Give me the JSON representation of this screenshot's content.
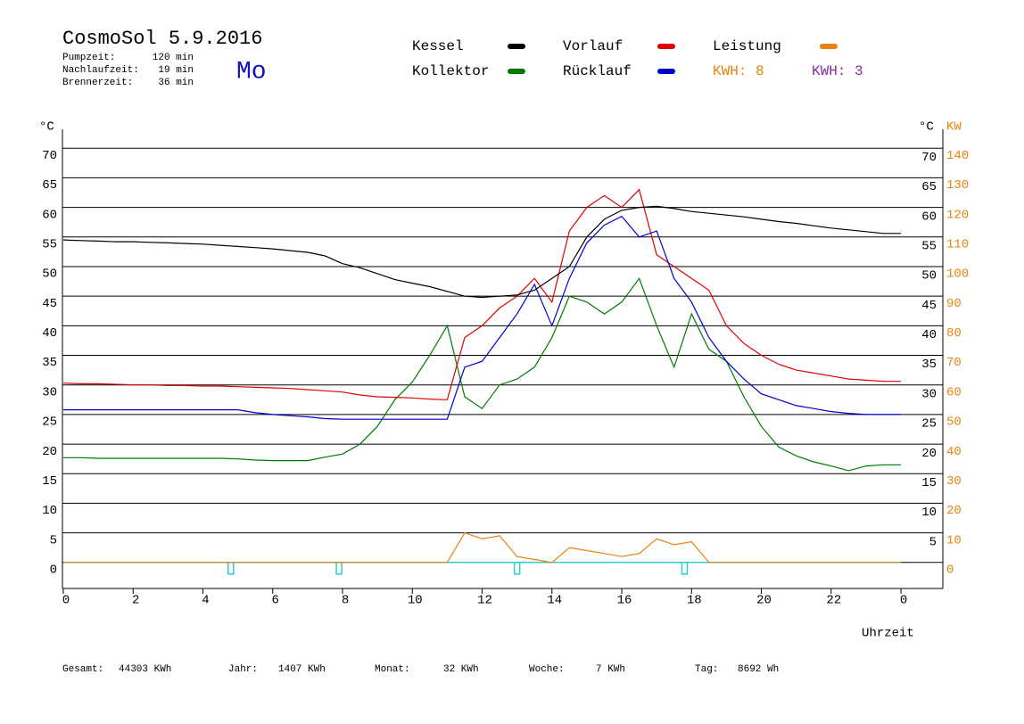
{
  "chart_data": {
    "type": "line",
    "title": "CosmoSol 5.9.2016",
    "weekday": "Mo",
    "info": [
      {
        "label": "Pumpzeit:",
        "value": "120 min"
      },
      {
        "label": "Nachlaufzeit:",
        "value": "19 min"
      },
      {
        "label": "Brennerzeit:",
        "value": "36 min"
      }
    ],
    "ylabel": "°C",
    "ylabel_right": "°C",
    "y2label": "KW",
    "xlabel": "Uhrzeit",
    "kwh": [
      {
        "label": "KWH: 8",
        "color": "#e8820c"
      },
      {
        "label": "KWH: 3",
        "color": "#8a2a9a"
      }
    ],
    "x": [
      0,
      0.5,
      1,
      1.5,
      2,
      2.5,
      3,
      3.5,
      4,
      4.5,
      5,
      5.5,
      6,
      6.5,
      7,
      7.5,
      8,
      8.5,
      9,
      9.5,
      10,
      10.5,
      11,
      11.5,
      12,
      12.5,
      13,
      13.5,
      14,
      14.5,
      15,
      15.5,
      16,
      16.5,
      17,
      17.5,
      18,
      18.5,
      19,
      19.5,
      20,
      20.5,
      21,
      21.5,
      22,
      22.5,
      23,
      23.5,
      24
    ],
    "series": [
      {
        "name": "Kessel",
        "color": "#000000",
        "values": [
          54.5,
          54.4,
          54.3,
          54.2,
          54.2,
          54.1,
          54,
          53.9,
          53.8,
          53.6,
          53.4,
          53.2,
          53,
          52.7,
          52.4,
          51.8,
          50.5,
          49.8,
          48.8,
          47.8,
          47.2,
          46.6,
          45.8,
          45,
          44.8,
          45,
          45.2,
          46,
          48,
          50,
          55,
          58,
          59.5,
          60,
          60.2,
          59.8,
          59.3,
          59,
          58.7,
          58.4,
          58,
          57.6,
          57.3,
          56.9,
          56.5,
          56.2,
          55.9,
          55.6,
          55.6
        ]
      },
      {
        "name": "Vorlauf",
        "color": "#e00000",
        "values": [
          30.3,
          30.2,
          30.2,
          30.1,
          30,
          30,
          29.9,
          29.9,
          29.8,
          29.8,
          29.7,
          29.6,
          29.5,
          29.4,
          29.2,
          29,
          28.8,
          28.3,
          28,
          27.9,
          27.8,
          27.6,
          27.5,
          38,
          40,
          43,
          45,
          48,
          44,
          56,
          60,
          62,
          60,
          63,
          52,
          50,
          48,
          46,
          40,
          37,
          35,
          33.5,
          32.5,
          32,
          31.5,
          31,
          30.8,
          30.6,
          30.6
        ]
      },
      {
        "name": "Leistung",
        "color": "#e8820c",
        "axis": "y2",
        "values": [
          0,
          0,
          0,
          0,
          0,
          0,
          0,
          0,
          0,
          0,
          0,
          0,
          0,
          0,
          0,
          0,
          0,
          0,
          0,
          0,
          0,
          0,
          0,
          10,
          8,
          9,
          2,
          1,
          0,
          5,
          4,
          3,
          2,
          3,
          8,
          6,
          7,
          0,
          0,
          0,
          0,
          0,
          0,
          0,
          0,
          0,
          0,
          0,
          0
        ]
      },
      {
        "name": "Kollektor",
        "color": "#007a00",
        "values": [
          17.7,
          17.7,
          17.6,
          17.6,
          17.6,
          17.6,
          17.6,
          17.6,
          17.6,
          17.6,
          17.5,
          17.3,
          17.2,
          17.2,
          17.2,
          17.8,
          18.3,
          20,
          23,
          27.5,
          30.5,
          35,
          40,
          28,
          26,
          30,
          31,
          33,
          38,
          45,
          44,
          42,
          44,
          48,
          40,
          33,
          42,
          36,
          34,
          28,
          23,
          19.5,
          18,
          17,
          16.3,
          15.5,
          16.3,
          16.5,
          16.5
        ]
      },
      {
        "name": "Rücklauf",
        "color": "#0000cc",
        "values": [
          25.8,
          25.8,
          25.8,
          25.8,
          25.8,
          25.8,
          25.8,
          25.8,
          25.8,
          25.8,
          25.8,
          25.3,
          25,
          24.8,
          24.6,
          24.3,
          24.2,
          24.2,
          24.2,
          24.2,
          24.2,
          24.2,
          24.2,
          33,
          34,
          38,
          42,
          47,
          40,
          48,
          54,
          57,
          58.5,
          55,
          56,
          48,
          44,
          38,
          34,
          31,
          28.5,
          27.5,
          26.5,
          26,
          25.5,
          25.2,
          25,
          25,
          25
        ]
      }
    ],
    "markers_x": [
      4.8,
      7.9,
      13.0,
      17.8
    ],
    "marker_color": "#33cccc",
    "xlim": [
      0,
      25.2
    ],
    "xticks": [
      0,
      2,
      4,
      6,
      8,
      10,
      12,
      14,
      16,
      18,
      20,
      22,
      {
        "value": 24,
        "label": "0"
      }
    ],
    "ylim": [
      -4.4,
      73.2
    ],
    "yticks": [
      0,
      5,
      10,
      15,
      20,
      25,
      30,
      35,
      40,
      45,
      50,
      55,
      60,
      65,
      70
    ],
    "yticks_right": [
      5,
      10,
      15,
      20,
      25,
      30,
      35,
      40,
      45,
      50,
      55,
      60,
      65,
      70
    ],
    "y2lim": [
      -8.8,
      146.4
    ],
    "y2ticks": [
      0,
      10,
      20,
      30,
      40,
      50,
      60,
      70,
      80,
      90,
      100,
      110,
      120,
      130,
      140
    ],
    "y2color": "#e8820c",
    "grid": true,
    "totals": [
      {
        "label": "Gesamt:",
        "value": "44303 KWh"
      },
      {
        "label": "Jahr:",
        "value": "1407 KWh"
      },
      {
        "label": "Monat:",
        "value": "32 KWh"
      },
      {
        "label": "Woche:",
        "value": "7 KWh"
      },
      {
        "label": "Tag:",
        "value": "8692 Wh"
      }
    ]
  }
}
